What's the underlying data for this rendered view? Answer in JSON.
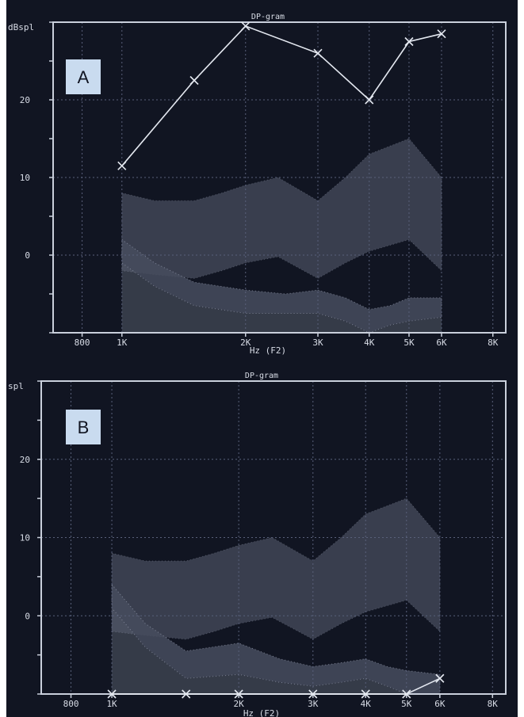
{
  "colors": {
    "background": "#111522",
    "frame": "#c9cfdb",
    "text": "#d8dce6",
    "series": "#e4e8f0",
    "normal_band": "#5a6072",
    "noise_band": "#474d5e",
    "noise_floor": "#3a3f4d",
    "panel_label_bg": "#c9dbef"
  },
  "chart_data": [
    {
      "type": "line",
      "panel_label": "A",
      "title": "DP-gram",
      "ylabel": "dBspl",
      "xlabel": "Hz (F2)",
      "x_scale": "log",
      "xlim": [
        680,
        8600
      ],
      "ylim": [
        -10,
        30
      ],
      "x_ticks": [
        800,
        1000,
        2000,
        3000,
        4000,
        5000,
        6000,
        8000
      ],
      "x_tick_labels": [
        "800",
        "1K",
        "2K",
        "3K",
        "4K",
        "5K",
        "6K",
        "8K"
      ],
      "y_ticks": [
        20,
        10,
        0
      ],
      "y_tick_labels": [
        "20",
        "10",
        "0"
      ],
      "grid": true,
      "series": [
        {
          "x": [
            1000,
            1500,
            2000,
            3000,
            4000,
            5000,
            6000
          ],
          "y": [
            11.5,
            22.5,
            29.5,
            26,
            20,
            27.5,
            28.5
          ]
        }
      ],
      "normal_range_band": {
        "x": [
          1000,
          1200,
          1500,
          1750,
          2000,
          2400,
          3000,
          3500,
          4000,
          5000,
          6000
        ],
        "upper": [
          8,
          7,
          7,
          8,
          9,
          10,
          7,
          10,
          13,
          15,
          10
        ],
        "lower": [
          -2,
          -2.5,
          -3,
          -2,
          -1,
          -0.2,
          -3,
          -1,
          0.5,
          2,
          -2
        ]
      },
      "noise_band": {
        "x": [
          1000,
          1200,
          1500,
          2000,
          2500,
          3000,
          3500,
          4000,
          4500,
          5000,
          6000
        ],
        "upper": [
          2,
          -1,
          -3.5,
          -4.5,
          -5,
          -4.5,
          -5.5,
          -7,
          -6.5,
          -5.5,
          -5.5
        ],
        "lower": [
          -1,
          -4,
          -6.5,
          -7.5,
          -7.5,
          -7.5,
          -8.5,
          -10,
          -9,
          -8.5,
          -8
        ]
      }
    },
    {
      "type": "line",
      "panel_label": "B",
      "title": "DP-gram",
      "ylabel": "spl",
      "xlabel": "Hz (F2)",
      "x_scale": "log",
      "xlim": [
        680,
        8600
      ],
      "ylim": [
        -10,
        30
      ],
      "x_ticks": [
        800,
        1000,
        2000,
        3000,
        4000,
        5000,
        6000,
        8000
      ],
      "x_tick_labels": [
        "800",
        "1K",
        "2K",
        "3K",
        "4K",
        "5K",
        "6K",
        "8K"
      ],
      "y_ticks": [
        20,
        10,
        0
      ],
      "y_tick_labels": [
        "20",
        "10",
        "0"
      ],
      "grid": true,
      "series": [
        {
          "x": [
            1000,
            1500,
            2000,
            3000,
            4000,
            5000,
            6000
          ],
          "y": [
            -10,
            -10,
            -10,
            -10,
            -10,
            -10,
            -8
          ]
        }
      ],
      "normal_range_band": {
        "x": [
          1000,
          1200,
          1500,
          1750,
          2000,
          2400,
          3000,
          3500,
          4000,
          5000,
          6000
        ],
        "upper": [
          8,
          7,
          7,
          8,
          9,
          10,
          7,
          10,
          13,
          15,
          10
        ],
        "lower": [
          -2,
          -2.5,
          -3,
          -2,
          -1,
          -0.2,
          -3,
          -1,
          0.5,
          2,
          -2
        ]
      },
      "noise_band": {
        "x": [
          1000,
          1200,
          1500,
          2000,
          2500,
          3000,
          3500,
          4000,
          4500,
          5000,
          6000
        ],
        "upper": [
          4,
          -1,
          -4.5,
          -3.5,
          -5.5,
          -6.5,
          -6,
          -5.5,
          -6.5,
          -7,
          -7.5
        ],
        "lower": [
          1,
          -4,
          -8,
          -7.5,
          -8.5,
          -9,
          -8.5,
          -8,
          -9,
          -10,
          -10
        ]
      }
    }
  ]
}
